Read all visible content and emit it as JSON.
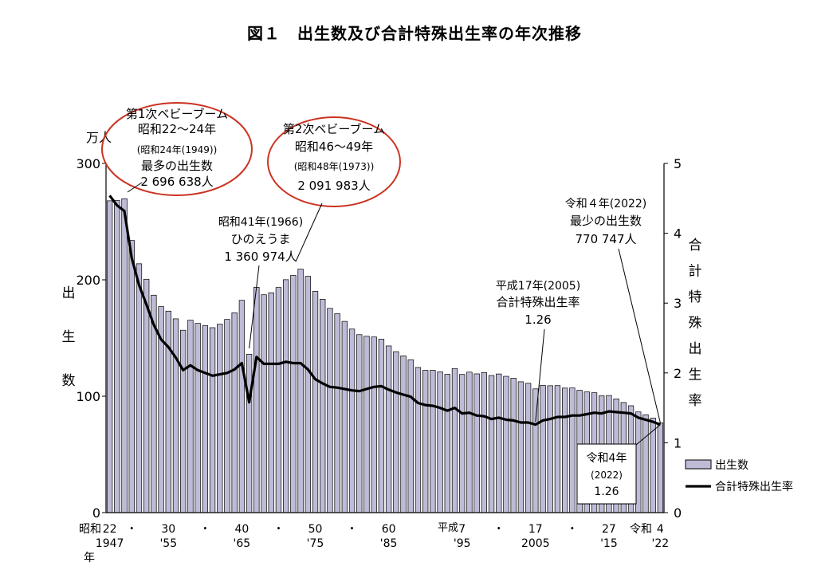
{
  "title": "図１　出生数及び合計特殊出生率の年次推移",
  "left_axis_unit": "万人",
  "left_axis_label": [
    "出",
    "生",
    "数"
  ],
  "right_axis_label": [
    "合",
    "計",
    "特",
    "殊",
    "出",
    "生",
    "率"
  ],
  "x_era_label_showa": "昭和",
  "x_era_label_heisei": "平成",
  "x_era_label_reiwa": "令和",
  "x_nen_label": "年",
  "left_ticks": [
    "0",
    "100",
    "200",
    "300"
  ],
  "right_ticks": [
    "0",
    "1",
    "2",
    "3",
    "4",
    "5"
  ],
  "x_ticks_top": [
    {
      "year": 1947,
      "label": "22"
    },
    {
      "year": 1950,
      "label": "・"
    },
    {
      "year": 1955,
      "label": "30"
    },
    {
      "year": 1960,
      "label": "・"
    },
    {
      "year": 1965,
      "label": "40"
    },
    {
      "year": 1970,
      "label": "・"
    },
    {
      "year": 1975,
      "label": "50"
    },
    {
      "year": 1980,
      "label": "・"
    },
    {
      "year": 1985,
      "label": "60"
    },
    {
      "year": 1995,
      "label": "7"
    },
    {
      "year": 2000,
      "label": "・"
    },
    {
      "year": 2005,
      "label": "17"
    },
    {
      "year": 2010,
      "label": "・"
    },
    {
      "year": 2015,
      "label": "27"
    },
    {
      "year": 2022,
      "label": "4"
    }
  ],
  "x_ticks_bottom": [
    {
      "year": 1947,
      "label": "1947"
    },
    {
      "year": 1955,
      "label": "'55"
    },
    {
      "year": 1965,
      "label": "'65"
    },
    {
      "year": 1975,
      "label": "'75"
    },
    {
      "year": 1985,
      "label": "'85"
    },
    {
      "year": 1995,
      "label": "'95"
    },
    {
      "year": 2005,
      "label": "2005"
    },
    {
      "year": 2015,
      "label": "'15"
    },
    {
      "year": 2022,
      "label": "'22"
    }
  ],
  "annotations": {
    "baby_boom1": [
      "第1次ベビーブーム",
      "昭和22～24年",
      "(昭和24年(1949))",
      "最多の出生数",
      "2 696 638人"
    ],
    "baby_boom2": [
      "第2次ベビーブーム",
      "昭和46～49年",
      "(昭和48年(1973))",
      "2 091 983人"
    ],
    "hinoeuma": [
      "昭和41年(1966)",
      "ひのえうま",
      "1 360 974人"
    ],
    "tfr_2005": [
      "平成17年(2005)",
      "合計特殊出生率",
      "1.26"
    ],
    "min_births": [
      "令和４年(2022)",
      "最少の出生数",
      "770 747人"
    ],
    "tfr_2022": [
      "令和4年",
      "(2022)",
      "1.26"
    ]
  },
  "legend": {
    "bar_label": "出生数",
    "line_label": "合計特殊出生率"
  },
  "colors": {
    "bar_fill": "#bdbbd6",
    "bar_stroke": "#000000",
    "line": "#000000",
    "ellipse": "#cc3322"
  },
  "chart_data": {
    "type": "bar",
    "title": "図１　出生数及び合計特殊出生率の年次推移",
    "xlabel": "",
    "ylabel": "出生数 (万人)",
    "ylim": [
      0,
      300
    ],
    "y2label": "合計特殊出生率",
    "y2lim": [
      0,
      5
    ],
    "x": [
      1947,
      1948,
      1949,
      1950,
      1951,
      1952,
      1953,
      1954,
      1955,
      1956,
      1957,
      1958,
      1959,
      1960,
      1961,
      1962,
      1963,
      1964,
      1965,
      1966,
      1967,
      1968,
      1969,
      1970,
      1971,
      1972,
      1973,
      1974,
      1975,
      1976,
      1977,
      1978,
      1979,
      1980,
      1981,
      1982,
      1983,
      1984,
      1985,
      1986,
      1987,
      1988,
      1989,
      1990,
      1991,
      1992,
      1993,
      1994,
      1995,
      1996,
      1997,
      1998,
      1999,
      2000,
      2001,
      2002,
      2003,
      2004,
      2005,
      2006,
      2007,
      2008,
      2009,
      2010,
      2011,
      2012,
      2013,
      2014,
      2015,
      2016,
      2017,
      2018,
      2019,
      2020,
      2021,
      2022
    ],
    "series": [
      {
        "name": "出生数",
        "type": "bar",
        "axis": "left",
        "values": [
          267.9,
          268.2,
          269.7,
          233.8,
          213.8,
          200.5,
          186.8,
          177.0,
          173.1,
          166.5,
          156.7,
          165.3,
          162.6,
          160.6,
          158.9,
          161.9,
          166.0,
          171.7,
          182.4,
          136.1,
          193.6,
          187.2,
          188.9,
          193.4,
          200.1,
          203.9,
          209.2,
          203.0,
          190.1,
          183.3,
          175.5,
          170.9,
          164.3,
          157.7,
          152.9,
          151.5,
          150.9,
          149.0,
          143.2,
          138.3,
          134.7,
          131.4,
          124.7,
          122.2,
          122.3,
          120.9,
          118.8,
          123.8,
          118.7,
          120.7,
          119.2,
          120.3,
          117.8,
          119.1,
          117.1,
          115.4,
          112.4,
          111.1,
          106.3,
          109.3,
          109.0,
          109.1,
          107.0,
          107.1,
          105.1,
          103.7,
          103.0,
          100.4,
          100.6,
          97.7,
          94.6,
          91.8,
          86.5,
          84.1,
          81.2,
          77.1
        ]
      },
      {
        "name": "合計特殊出生率",
        "type": "line",
        "axis": "right",
        "values": [
          4.54,
          4.4,
          4.32,
          3.65,
          3.26,
          2.98,
          2.69,
          2.48,
          2.37,
          2.22,
          2.04,
          2.11,
          2.04,
          2.0,
          1.96,
          1.98,
          2.0,
          2.05,
          2.14,
          1.58,
          2.23,
          2.13,
          2.13,
          2.13,
          2.16,
          2.14,
          2.14,
          2.05,
          1.91,
          1.85,
          1.8,
          1.79,
          1.77,
          1.75,
          1.74,
          1.77,
          1.8,
          1.81,
          1.76,
          1.72,
          1.69,
          1.66,
          1.57,
          1.54,
          1.53,
          1.5,
          1.46,
          1.5,
          1.42,
          1.43,
          1.39,
          1.38,
          1.34,
          1.36,
          1.33,
          1.32,
          1.29,
          1.29,
          1.26,
          1.32,
          1.34,
          1.37,
          1.37,
          1.39,
          1.39,
          1.41,
          1.43,
          1.42,
          1.45,
          1.44,
          1.43,
          1.42,
          1.36,
          1.33,
          1.3,
          1.26
        ]
      }
    ],
    "legend": [
      "出生数",
      "合計特殊出生率"
    ]
  }
}
